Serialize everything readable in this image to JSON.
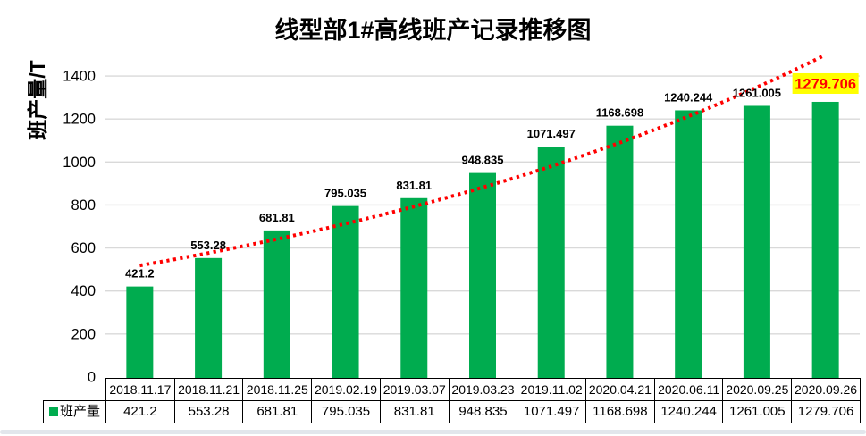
{
  "chart": {
    "title": "线型部1#高线班产记录推移图",
    "y_axis_label": "班产量/T",
    "legend": {
      "series_label": "班产量"
    }
  },
  "colors": {
    "bar": "#00AC4F",
    "trendline": "#FF0000",
    "gridline": "#D9D9D9",
    "label_text": "#000000",
    "highlight_bg": "#FFFF00",
    "highlight_text": "#FF0000"
  },
  "chart_data": {
    "type": "bar",
    "title": "线型部1#高线班产记录推移图",
    "xlabel": "",
    "ylabel": "班产量/T",
    "categories": [
      "2018.11.17",
      "2018.11.21",
      "2018.11.25",
      "2019.02.19",
      "2019.03.07",
      "2019.03.23",
      "2019.11.02",
      "2020.04.21",
      "2020.06.11",
      "2020.09.25",
      "2020.09.26"
    ],
    "series": [
      {
        "name": "班产量",
        "values": [
          421.2,
          553.28,
          681.81,
          795.035,
          831.81,
          948.835,
          1071.497,
          1168.698,
          1240.244,
          1261.005,
          1279.706
        ]
      }
    ],
    "data_labels": [
      "421.2",
      "553.28",
      "681.81",
      "795.035",
      "831.81",
      "948.835",
      "1071.497",
      "1168.698",
      "1240.244",
      "1261.005",
      "1279.706"
    ],
    "highlighted_label_index": 10,
    "y_ticks": [
      0,
      200,
      400,
      600,
      800,
      1000,
      1200,
      1400
    ],
    "ylim": [
      0,
      1500
    ],
    "grid": true,
    "legend_position": "data-table-left",
    "trendline": {
      "type": "exponential",
      "style": "dotted"
    },
    "data_table_shown": true
  }
}
